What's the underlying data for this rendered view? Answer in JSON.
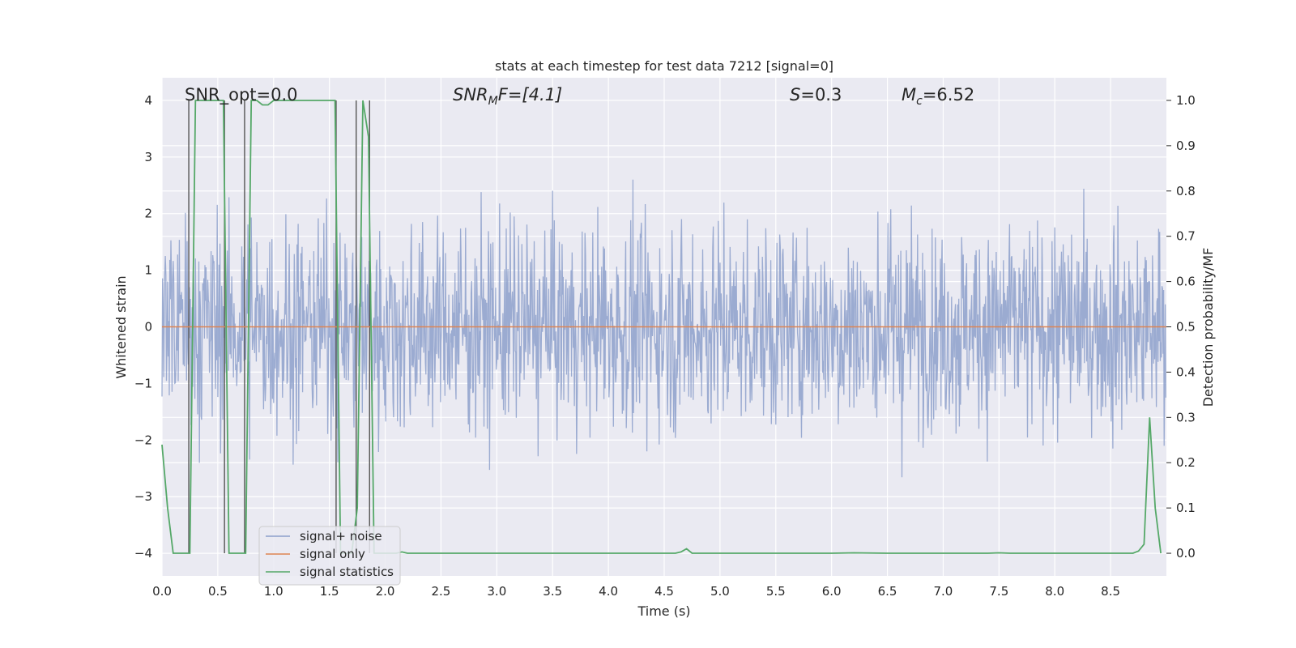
{
  "chart_data": {
    "type": "line",
    "title": "stats at each timestep for test data 7212 [signal=0]",
    "xlabel": "Time (s)",
    "ylabel": "Whitened strain",
    "y2label": "Detection probability/MF",
    "xlim": [
      0.0,
      9.0
    ],
    "ylim": [
      -4.4,
      4.4
    ],
    "y2lim": [
      -0.05,
      1.05
    ],
    "xticks": [
      "0.0",
      "0.5",
      "1.0",
      "1.5",
      "2.0",
      "2.5",
      "3.0",
      "3.5",
      "4.0",
      "4.5",
      "5.0",
      "5.5",
      "6.0",
      "6.5",
      "7.0",
      "7.5",
      "8.0",
      "8.5"
    ],
    "xtick_values": [
      0.0,
      0.5,
      1.0,
      1.5,
      2.0,
      2.5,
      3.0,
      3.5,
      4.0,
      4.5,
      5.0,
      5.5,
      6.0,
      6.5,
      7.0,
      7.5,
      8.0,
      8.5
    ],
    "yticks": [
      "4",
      "3",
      "2",
      "1",
      "0",
      "−1",
      "−2",
      "−3",
      "−4"
    ],
    "ytick_values": [
      4,
      3,
      2,
      1,
      0,
      -1,
      -2,
      -3,
      -4
    ],
    "y2ticks": [
      "1.0",
      "0.9",
      "0.8",
      "0.7",
      "0.6",
      "0.5",
      "0.4",
      "0.3",
      "0.2",
      "0.1",
      "0.0"
    ],
    "y2tick_values": [
      1.0,
      0.9,
      0.8,
      0.7,
      0.6,
      0.5,
      0.4,
      0.3,
      0.2,
      0.1,
      0.0
    ],
    "grid": true,
    "legend_position": "lower-left",
    "annotations": {
      "snr_opt": "SNR_opt=0.0",
      "snr_mf_base": "SNR",
      "snr_mf_sub": "M",
      "snr_mf_rest": "F=[4.1]",
      "s_var": "S",
      "s_rest": "=0.3",
      "mc_var": "M",
      "mc_sub": "c",
      "mc_rest": "=6.52"
    },
    "series": [
      {
        "name": "signal+ noise",
        "color": "#8da0cb",
        "description_note": "",
        "noise_envelope": {
          "typical_max": 2.0,
          "typical_min": -2.0,
          "peak_max": 4.0,
          "peak_min": -4.0,
          "samples_per_second": 200
        }
      },
      {
        "name": "signal only",
        "color": "#dd8452",
        "x": [
          0.0,
          9.0
        ],
        "y": [
          0.0,
          0.0
        ]
      },
      {
        "name": "signal statistics",
        "color": "#55a868",
        "axis": "right",
        "x": [
          0.0,
          0.05,
          0.1,
          0.15,
          0.2,
          0.25,
          0.3,
          0.35,
          0.4,
          0.45,
          0.5,
          0.55,
          0.6,
          0.65,
          0.7,
          0.75,
          0.8,
          0.85,
          0.9,
          0.95,
          1.0,
          1.05,
          1.1,
          1.15,
          1.2,
          1.25,
          1.3,
          1.35,
          1.4,
          1.45,
          1.5,
          1.55,
          1.6,
          1.65,
          1.7,
          1.75,
          1.8,
          1.85,
          1.9,
          1.95,
          2.0,
          2.05,
          2.1,
          2.15,
          2.2,
          2.3,
          2.5,
          3.0,
          3.5,
          4.0,
          4.5,
          4.6,
          4.65,
          4.7,
          4.75,
          4.8,
          5.0,
          5.5,
          6.0,
          6.2,
          6.5,
          7.0,
          7.4,
          7.5,
          7.6,
          8.0,
          8.5,
          8.7,
          8.75,
          8.8,
          8.85,
          8.9,
          8.95
        ],
        "y": [
          0.24,
          0.1,
          0.0,
          0.0,
          0.0,
          0.0,
          1.0,
          1.0,
          1.0,
          1.0,
          1.0,
          1.0,
          0.0,
          0.0,
          0.0,
          0.0,
          1.0,
          1.0,
          0.99,
          0.99,
          1.0,
          1.0,
          1.0,
          1.0,
          1.0,
          1.0,
          1.0,
          1.0,
          1.0,
          1.0,
          1.0,
          1.0,
          0.0,
          0.0,
          0.0,
          0.1,
          1.0,
          0.92,
          0.0,
          0.0,
          0.0,
          0.0,
          0.0,
          0.003,
          0.0,
          0.0,
          0.0,
          0.0,
          0.0,
          0.0,
          0.0,
          0.0,
          0.003,
          0.01,
          0.0,
          0.0,
          0.0,
          0.0,
          0.0,
          0.001,
          0.0,
          0.0,
          0.0,
          0.001,
          0.0,
          0.0,
          0.0,
          0.0,
          0.005,
          0.02,
          0.3,
          0.1,
          0.0
        ]
      }
    ],
    "vertical_markers": [
      0.24,
      0.56,
      0.74,
      1.56,
      1.74,
      1.86
    ]
  }
}
